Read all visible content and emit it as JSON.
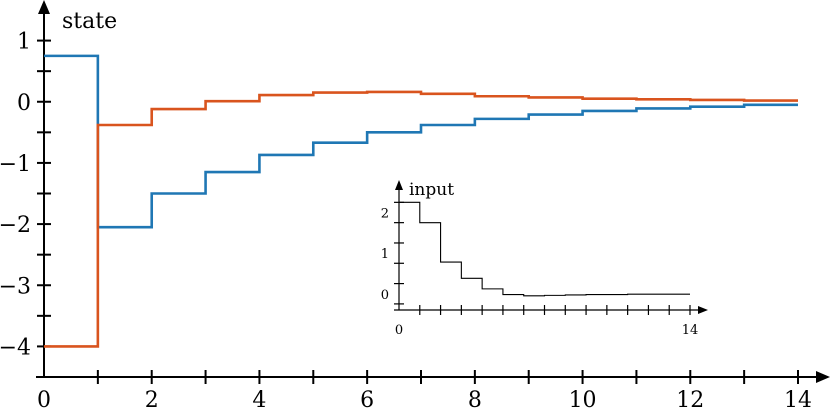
{
  "chart_data": [
    {
      "type": "line",
      "step": "post",
      "ylabel": "state",
      "xlabel": "",
      "xlim": [
        0,
        14
      ],
      "ylim": [
        -4.5,
        1.5
      ],
      "x_ticks": [
        0,
        2,
        4,
        6,
        8,
        10,
        12,
        14
      ],
      "x_tick_labels": [
        "0",
        "2",
        "4",
        "6",
        "8",
        "10",
        "12",
        "14"
      ],
      "y_ticks": [
        1,
        0,
        -1,
        -2,
        -3,
        -4
      ],
      "y_tick_labels": [
        "1",
        "0",
        "−1",
        "−2",
        "−3",
        "−4"
      ],
      "grid": false,
      "series": [
        {
          "color": "#1f77b4",
          "x": [
            0,
            1,
            2,
            3,
            4,
            5,
            6,
            7,
            8,
            9,
            10,
            11,
            12,
            13,
            14
          ],
          "y": [
            0.75,
            -2.05,
            -1.5,
            -1.15,
            -0.87,
            -0.67,
            -0.5,
            -0.38,
            -0.28,
            -0.21,
            -0.15,
            -0.11,
            -0.08,
            -0.05,
            -0.05
          ]
        },
        {
          "color": "#d9541e",
          "x": [
            0,
            1,
            2,
            3,
            4,
            5,
            6,
            7,
            8,
            9,
            10,
            11,
            12,
            13,
            14
          ],
          "y": [
            -4.0,
            -0.38,
            -0.12,
            0.01,
            0.11,
            0.15,
            0.16,
            0.13,
            0.09,
            0.07,
            0.05,
            0.04,
            0.03,
            0.02,
            0.02
          ]
        }
      ]
    },
    {
      "type": "line",
      "step": "post",
      "ylabel": "input",
      "xlabel": "",
      "xlim": [
        0,
        14
      ],
      "ylim": [
        -0.4,
        2.8
      ],
      "x_ticks": [
        0,
        14
      ],
      "x_tick_labels": [
        "0",
        "14"
      ],
      "y_ticks": [
        2,
        1,
        0
      ],
      "y_tick_labels": [
        "2",
        "1",
        "0"
      ],
      "grid": false,
      "series": [
        {
          "color": "#000000",
          "x": [
            0,
            1,
            2,
            3,
            4,
            5,
            6,
            7,
            8,
            9,
            10,
            11,
            12,
            13,
            14
          ],
          "y": [
            2.25,
            1.75,
            0.78,
            0.38,
            0.12,
            -0.02,
            -0.05,
            -0.04,
            -0.03,
            -0.02,
            -0.02,
            -0.01,
            -0.01,
            -0.01,
            -0.01
          ]
        }
      ]
    }
  ]
}
